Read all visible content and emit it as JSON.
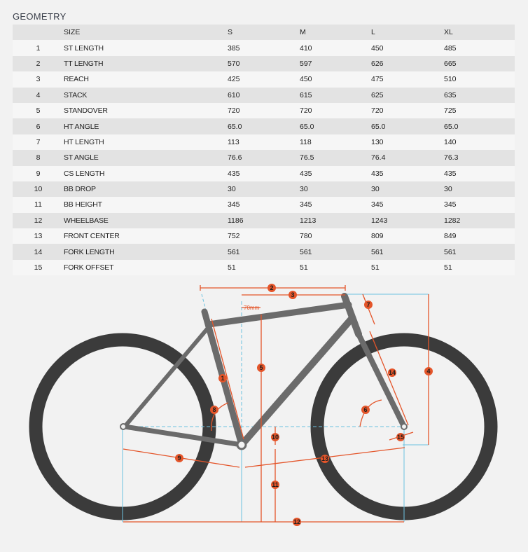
{
  "title": "GEOMETRY",
  "table": {
    "headers": [
      "",
      "SIZE",
      "S",
      "M",
      "L",
      "XL"
    ],
    "rows": [
      {
        "n": "1",
        "label": "ST LENGTH",
        "s": "385",
        "m": "410",
        "l": "450",
        "xl": "485"
      },
      {
        "n": "2",
        "label": "TT LENGTH",
        "s": "570",
        "m": "597",
        "l": "626",
        "xl": "665"
      },
      {
        "n": "3",
        "label": "REACH",
        "s": "425",
        "m": "450",
        "l": "475",
        "xl": "510"
      },
      {
        "n": "4",
        "label": "STACK",
        "s": "610",
        "m": "615",
        "l": "625",
        "xl": "635"
      },
      {
        "n": "5",
        "label": "STANDOVER",
        "s": "720",
        "m": "720",
        "l": "720",
        "xl": "725"
      },
      {
        "n": "6",
        "label": "HT ANGLE",
        "s": "65.0",
        "m": "65.0",
        "l": "65.0",
        "xl": "65.0"
      },
      {
        "n": "7",
        "label": "HT LENGTH",
        "s": "113",
        "m": "118",
        "l": "130",
        "xl": "140"
      },
      {
        "n": "8",
        "label": "ST ANGLE",
        "s": "76.6",
        "m": "76.5",
        "l": "76.4",
        "xl": "76.3"
      },
      {
        "n": "9",
        "label": "CS LENGTH",
        "s": "435",
        "m": "435",
        "l": "435",
        "xl": "435"
      },
      {
        "n": "10",
        "label": "BB DROP",
        "s": "30",
        "m": "30",
        "l": "30",
        "xl": "30"
      },
      {
        "n": "11",
        "label": "BB HEIGHT",
        "s": "345",
        "m": "345",
        "l": "345",
        "xl": "345"
      },
      {
        "n": "12",
        "label": "WHEELBASE",
        "s": "1186",
        "m": "1213",
        "l": "1243",
        "xl": "1282"
      },
      {
        "n": "13",
        "label": "FRONT CENTER",
        "s": "752",
        "m": "780",
        "l": "809",
        "xl": "849"
      },
      {
        "n": "14",
        "label": "FORK LENGTH",
        "s": "561",
        "m": "561",
        "l": "561",
        "xl": "561"
      },
      {
        "n": "15",
        "label": "FORK OFFSET",
        "s": "51",
        "m": "51",
        "l": "51",
        "xl": "51"
      }
    ]
  },
  "diagram": {
    "annotation": "70mm",
    "markers": [
      "1",
      "2",
      "3",
      "4",
      "5",
      "6",
      "7",
      "8",
      "9",
      "10",
      "11",
      "12",
      "13",
      "14",
      "15"
    ],
    "colors": {
      "accent": "#e4552a",
      "guide": "#6cc3e0",
      "frame": "#6b6b6b",
      "tire": "#3b3b3b",
      "background": "#f2f2f2"
    }
  }
}
